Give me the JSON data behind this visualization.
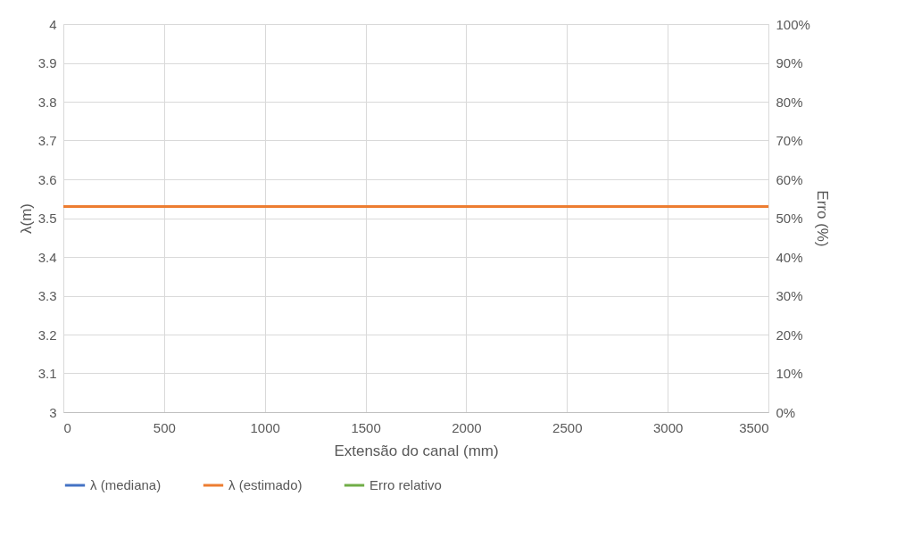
{
  "chart_data": {
    "type": "line",
    "xlabel": "Extensão do canal (mm)",
    "ylabel": "λ(m)",
    "y2label": "Erro (%)",
    "x": [
      0,
      3500
    ],
    "series": [
      {
        "name": "λ (mediana)",
        "color": "#4472c4",
        "values": [
          null,
          null
        ]
      },
      {
        "name": "λ (estimado)",
        "color": "#ed7d31",
        "values": [
          3.53,
          3.53
        ]
      },
      {
        "name": "Erro relativo",
        "color": "#70ad47",
        "values": [
          null,
          null
        ],
        "axis": "y2"
      }
    ],
    "xlim": [
      0,
      3500
    ],
    "xticks": [
      0,
      500,
      1000,
      1500,
      2000,
      2500,
      3000,
      3500
    ],
    "ylim": [
      3,
      4
    ],
    "yticks": [
      3,
      3.1,
      3.2,
      3.3,
      3.4,
      3.5,
      3.6,
      3.7,
      3.8,
      3.9,
      4
    ],
    "y2lim": [
      0,
      100
    ],
    "y2ticks": [
      {
        "value": 0,
        "label": "0%"
      },
      {
        "value": 10,
        "label": "10%"
      },
      {
        "value": 20,
        "label": "20%"
      },
      {
        "value": 30,
        "label": "30%"
      },
      {
        "value": 40,
        "label": "40%"
      },
      {
        "value": 50,
        "label": "50%"
      },
      {
        "value": 60,
        "label": "60%"
      },
      {
        "value": 70,
        "label": "70%"
      },
      {
        "value": 80,
        "label": "80%"
      },
      {
        "value": 90,
        "label": "90%"
      },
      {
        "value": 100,
        "label": "100%"
      }
    ],
    "grid": true,
    "legend": "bottom"
  }
}
